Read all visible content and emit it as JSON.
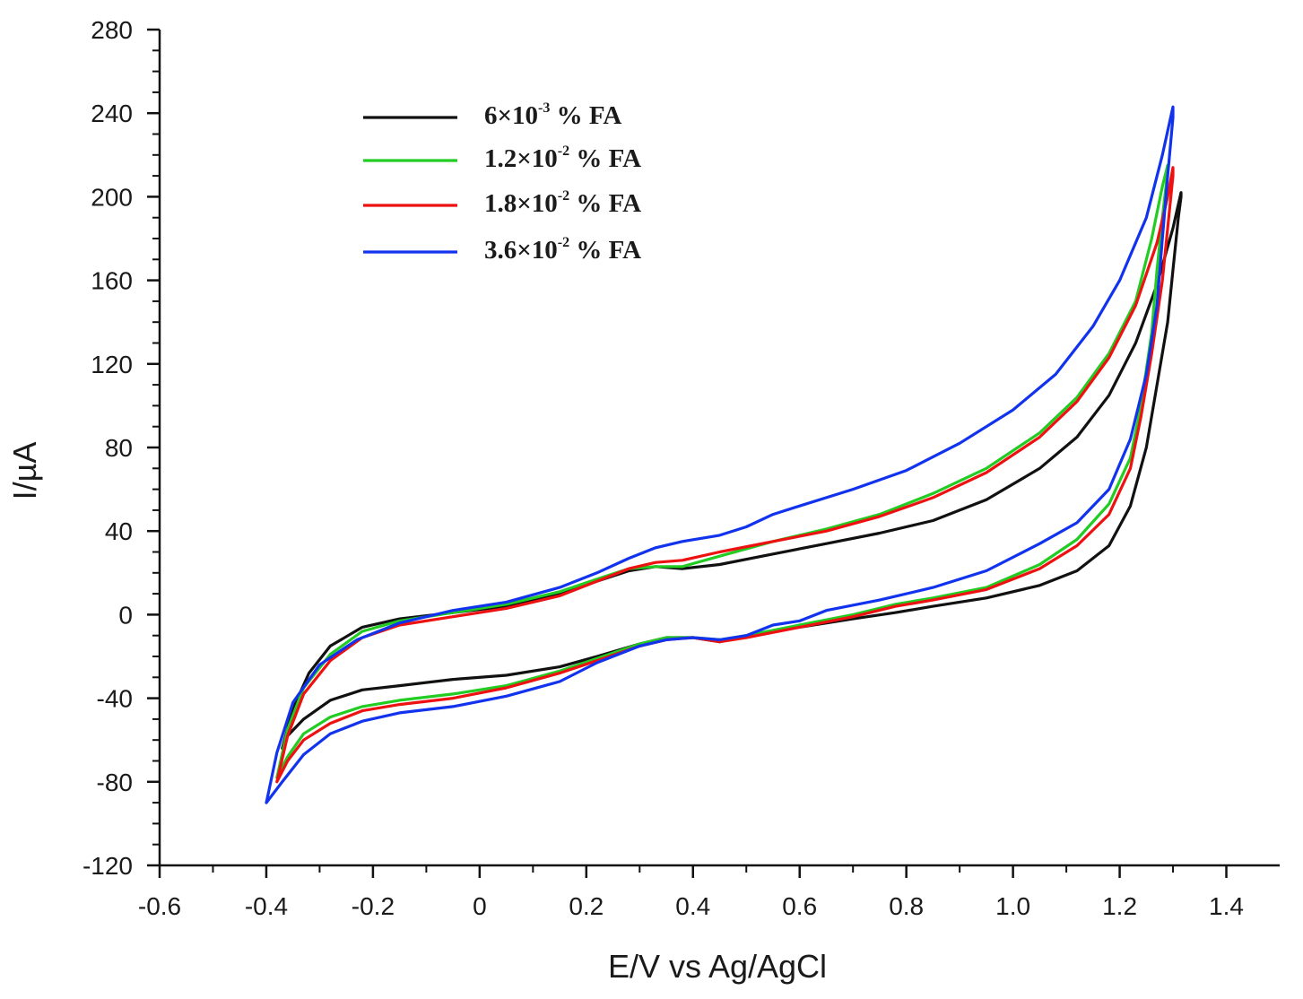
{
  "chart_data": {
    "type": "line",
    "title": "",
    "xlabel": "E/V vs Ag/AgCl",
    "ylabel": "I/µA",
    "xlim": [
      -0.6,
      1.5
    ],
    "ylim": [
      -120,
      280
    ],
    "x_ticks": [
      -0.6,
      -0.4,
      -0.2,
      0,
      0.2,
      0.4,
      0.6,
      0.8,
      1.0,
      1.2,
      1.4
    ],
    "x_tick_labels": [
      "-0.6",
      "-0.4",
      "-0.2",
      "0",
      "0.2",
      "0.4",
      "0.6",
      "0.8",
      "1.0",
      "1.2",
      "1.4"
    ],
    "y_ticks": [
      -120,
      -80,
      -40,
      0,
      40,
      80,
      120,
      160,
      200,
      240,
      280
    ],
    "y_tick_labels": [
      "-120",
      "-80",
      "-40",
      "0",
      "40",
      "80",
      "120",
      "160",
      "200",
      "240",
      "280"
    ],
    "grid": false,
    "legend_position": "top-left",
    "series": [
      {
        "name": "6×10-3 % FA",
        "legend_base": "6×10",
        "legend_sup": "-3",
        "legend_tail": " % FA",
        "color": "#111111",
        "points": [
          [
            -0.37,
            -64
          ],
          [
            -0.35,
            -45
          ],
          [
            -0.32,
            -28
          ],
          [
            -0.28,
            -15
          ],
          [
            -0.22,
            -6
          ],
          [
            -0.15,
            -2
          ],
          [
            -0.05,
            1
          ],
          [
            0.05,
            4
          ],
          [
            0.15,
            10
          ],
          [
            0.22,
            16
          ],
          [
            0.28,
            21
          ],
          [
            0.33,
            23
          ],
          [
            0.38,
            22
          ],
          [
            0.45,
            24
          ],
          [
            0.55,
            29
          ],
          [
            0.65,
            34
          ],
          [
            0.75,
            39
          ],
          [
            0.85,
            45
          ],
          [
            0.95,
            55
          ],
          [
            1.05,
            70
          ],
          [
            1.12,
            85
          ],
          [
            1.18,
            105
          ],
          [
            1.23,
            130
          ],
          [
            1.27,
            158
          ],
          [
            1.3,
            185
          ],
          [
            1.315,
            202
          ],
          [
            1.315,
            200
          ],
          [
            1.31,
            190
          ],
          [
            1.3,
            165
          ],
          [
            1.29,
            140
          ],
          [
            1.27,
            110
          ],
          [
            1.25,
            80
          ],
          [
            1.22,
            52
          ],
          [
            1.18,
            33
          ],
          [
            1.12,
            21
          ],
          [
            1.05,
            14
          ],
          [
            0.95,
            8
          ],
          [
            0.85,
            4
          ],
          [
            0.78,
            1
          ],
          [
            0.7,
            -2
          ],
          [
            0.6,
            -6
          ],
          [
            0.5,
            -10
          ],
          [
            0.45,
            -13
          ],
          [
            0.4,
            -11
          ],
          [
            0.35,
            -11
          ],
          [
            0.3,
            -14
          ],
          [
            0.22,
            -20
          ],
          [
            0.15,
            -25
          ],
          [
            0.05,
            -29
          ],
          [
            -0.05,
            -31
          ],
          [
            -0.15,
            -34
          ],
          [
            -0.22,
            -36
          ],
          [
            -0.28,
            -41
          ],
          [
            -0.33,
            -50
          ],
          [
            -0.36,
            -58
          ],
          [
            -0.37,
            -64
          ]
        ]
      },
      {
        "name": "1.2×10-2 % FA",
        "legend_base": "1.2×10",
        "legend_sup": "-2",
        "legend_tail": " % FA",
        "color": "#22cc22",
        "points": [
          [
            -0.38,
            -78
          ],
          [
            -0.36,
            -55
          ],
          [
            -0.33,
            -35
          ],
          [
            -0.28,
            -19
          ],
          [
            -0.22,
            -8
          ],
          [
            -0.15,
            -3
          ],
          [
            -0.05,
            1
          ],
          [
            0.05,
            5
          ],
          [
            0.15,
            11
          ],
          [
            0.22,
            17
          ],
          [
            0.28,
            22
          ],
          [
            0.33,
            23
          ],
          [
            0.38,
            23
          ],
          [
            0.45,
            28
          ],
          [
            0.55,
            35
          ],
          [
            0.65,
            41
          ],
          [
            0.75,
            48
          ],
          [
            0.85,
            58
          ],
          [
            0.95,
            70
          ],
          [
            1.05,
            87
          ],
          [
            1.12,
            104
          ],
          [
            1.18,
            125
          ],
          [
            1.23,
            150
          ],
          [
            1.26,
            180
          ],
          [
            1.28,
            205
          ],
          [
            1.29,
            215
          ],
          [
            1.29,
            212
          ],
          [
            1.28,
            190
          ],
          [
            1.27,
            165
          ],
          [
            1.26,
            135
          ],
          [
            1.24,
            100
          ],
          [
            1.22,
            75
          ],
          [
            1.18,
            53
          ],
          [
            1.12,
            36
          ],
          [
            1.05,
            24
          ],
          [
            0.95,
            13
          ],
          [
            0.85,
            8
          ],
          [
            0.78,
            5
          ],
          [
            0.7,
            0
          ],
          [
            0.6,
            -5
          ],
          [
            0.5,
            -10
          ],
          [
            0.45,
            -12
          ],
          [
            0.4,
            -11
          ],
          [
            0.35,
            -11
          ],
          [
            0.3,
            -14
          ],
          [
            0.22,
            -21
          ],
          [
            0.15,
            -27
          ],
          [
            0.05,
            -34
          ],
          [
            -0.05,
            -38
          ],
          [
            -0.15,
            -41
          ],
          [
            -0.22,
            -44
          ],
          [
            -0.28,
            -49
          ],
          [
            -0.33,
            -57
          ],
          [
            -0.36,
            -68
          ],
          [
            -0.38,
            -78
          ]
        ]
      },
      {
        "name": "1.8×10-2 % FA",
        "legend_base": "1.8×10",
        "legend_sup": "-2",
        "legend_tail": " % FA",
        "color": "#ee1111",
        "points": [
          [
            -0.38,
            -80
          ],
          [
            -0.36,
            -58
          ],
          [
            -0.33,
            -38
          ],
          [
            -0.28,
            -22
          ],
          [
            -0.22,
            -11
          ],
          [
            -0.15,
            -5
          ],
          [
            -0.05,
            -1
          ],
          [
            0.05,
            3
          ],
          [
            0.15,
            9
          ],
          [
            0.22,
            16
          ],
          [
            0.28,
            22
          ],
          [
            0.33,
            25
          ],
          [
            0.38,
            26
          ],
          [
            0.45,
            30
          ],
          [
            0.55,
            35
          ],
          [
            0.65,
            40
          ],
          [
            0.75,
            47
          ],
          [
            0.85,
            56
          ],
          [
            0.95,
            68
          ],
          [
            1.05,
            85
          ],
          [
            1.12,
            102
          ],
          [
            1.18,
            123
          ],
          [
            1.23,
            148
          ],
          [
            1.27,
            178
          ],
          [
            1.29,
            200
          ],
          [
            1.3,
            214
          ],
          [
            1.3,
            210
          ],
          [
            1.29,
            185
          ],
          [
            1.28,
            160
          ],
          [
            1.26,
            125
          ],
          [
            1.24,
            95
          ],
          [
            1.22,
            70
          ],
          [
            1.18,
            48
          ],
          [
            1.12,
            33
          ],
          [
            1.05,
            22
          ],
          [
            0.95,
            12
          ],
          [
            0.85,
            7
          ],
          [
            0.78,
            4
          ],
          [
            0.7,
            -1
          ],
          [
            0.6,
            -6
          ],
          [
            0.5,
            -11
          ],
          [
            0.45,
            -13
          ],
          [
            0.4,
            -11
          ],
          [
            0.35,
            -12
          ],
          [
            0.3,
            -15
          ],
          [
            0.22,
            -22
          ],
          [
            0.15,
            -28
          ],
          [
            0.05,
            -35
          ],
          [
            -0.05,
            -40
          ],
          [
            -0.15,
            -43
          ],
          [
            -0.22,
            -46
          ],
          [
            -0.28,
            -52
          ],
          [
            -0.33,
            -60
          ],
          [
            -0.36,
            -70
          ],
          [
            -0.38,
            -80
          ]
        ]
      },
      {
        "name": "3.6×10-2 % FA",
        "legend_base": "3.6×10",
        "legend_sup": "-2",
        "legend_tail": " % FA",
        "color": "#1133ee",
        "points": [
          [
            -0.4,
            -90
          ],
          [
            -0.38,
            -66
          ],
          [
            -0.35,
            -42
          ],
          [
            -0.3,
            -24
          ],
          [
            -0.23,
            -12
          ],
          [
            -0.15,
            -4
          ],
          [
            -0.05,
            2
          ],
          [
            0.05,
            6
          ],
          [
            0.15,
            13
          ],
          [
            0.22,
            20
          ],
          [
            0.28,
            27
          ],
          [
            0.33,
            32
          ],
          [
            0.38,
            35
          ],
          [
            0.45,
            38
          ],
          [
            0.5,
            42
          ],
          [
            0.55,
            48
          ],
          [
            0.6,
            52
          ],
          [
            0.7,
            60
          ],
          [
            0.8,
            69
          ],
          [
            0.9,
            82
          ],
          [
            1.0,
            98
          ],
          [
            1.08,
            115
          ],
          [
            1.15,
            138
          ],
          [
            1.2,
            160
          ],
          [
            1.25,
            190
          ],
          [
            1.28,
            220
          ],
          [
            1.3,
            243
          ],
          [
            1.3,
            238
          ],
          [
            1.29,
            210
          ],
          [
            1.28,
            180
          ],
          [
            1.27,
            148
          ],
          [
            1.25,
            115
          ],
          [
            1.22,
            84
          ],
          [
            1.18,
            60
          ],
          [
            1.12,
            44
          ],
          [
            1.05,
            34
          ],
          [
            0.95,
            21
          ],
          [
            0.85,
            13
          ],
          [
            0.75,
            7
          ],
          [
            0.65,
            2
          ],
          [
            0.6,
            -3
          ],
          [
            0.55,
            -5
          ],
          [
            0.5,
            -10
          ],
          [
            0.45,
            -12
          ],
          [
            0.4,
            -11
          ],
          [
            0.35,
            -12
          ],
          [
            0.3,
            -15
          ],
          [
            0.22,
            -23
          ],
          [
            0.15,
            -32
          ],
          [
            0.05,
            -39
          ],
          [
            -0.05,
            -44
          ],
          [
            -0.15,
            -47
          ],
          [
            -0.22,
            -51
          ],
          [
            -0.28,
            -57
          ],
          [
            -0.33,
            -67
          ],
          [
            -0.37,
            -80
          ],
          [
            -0.4,
            -90
          ]
        ]
      }
    ]
  }
}
